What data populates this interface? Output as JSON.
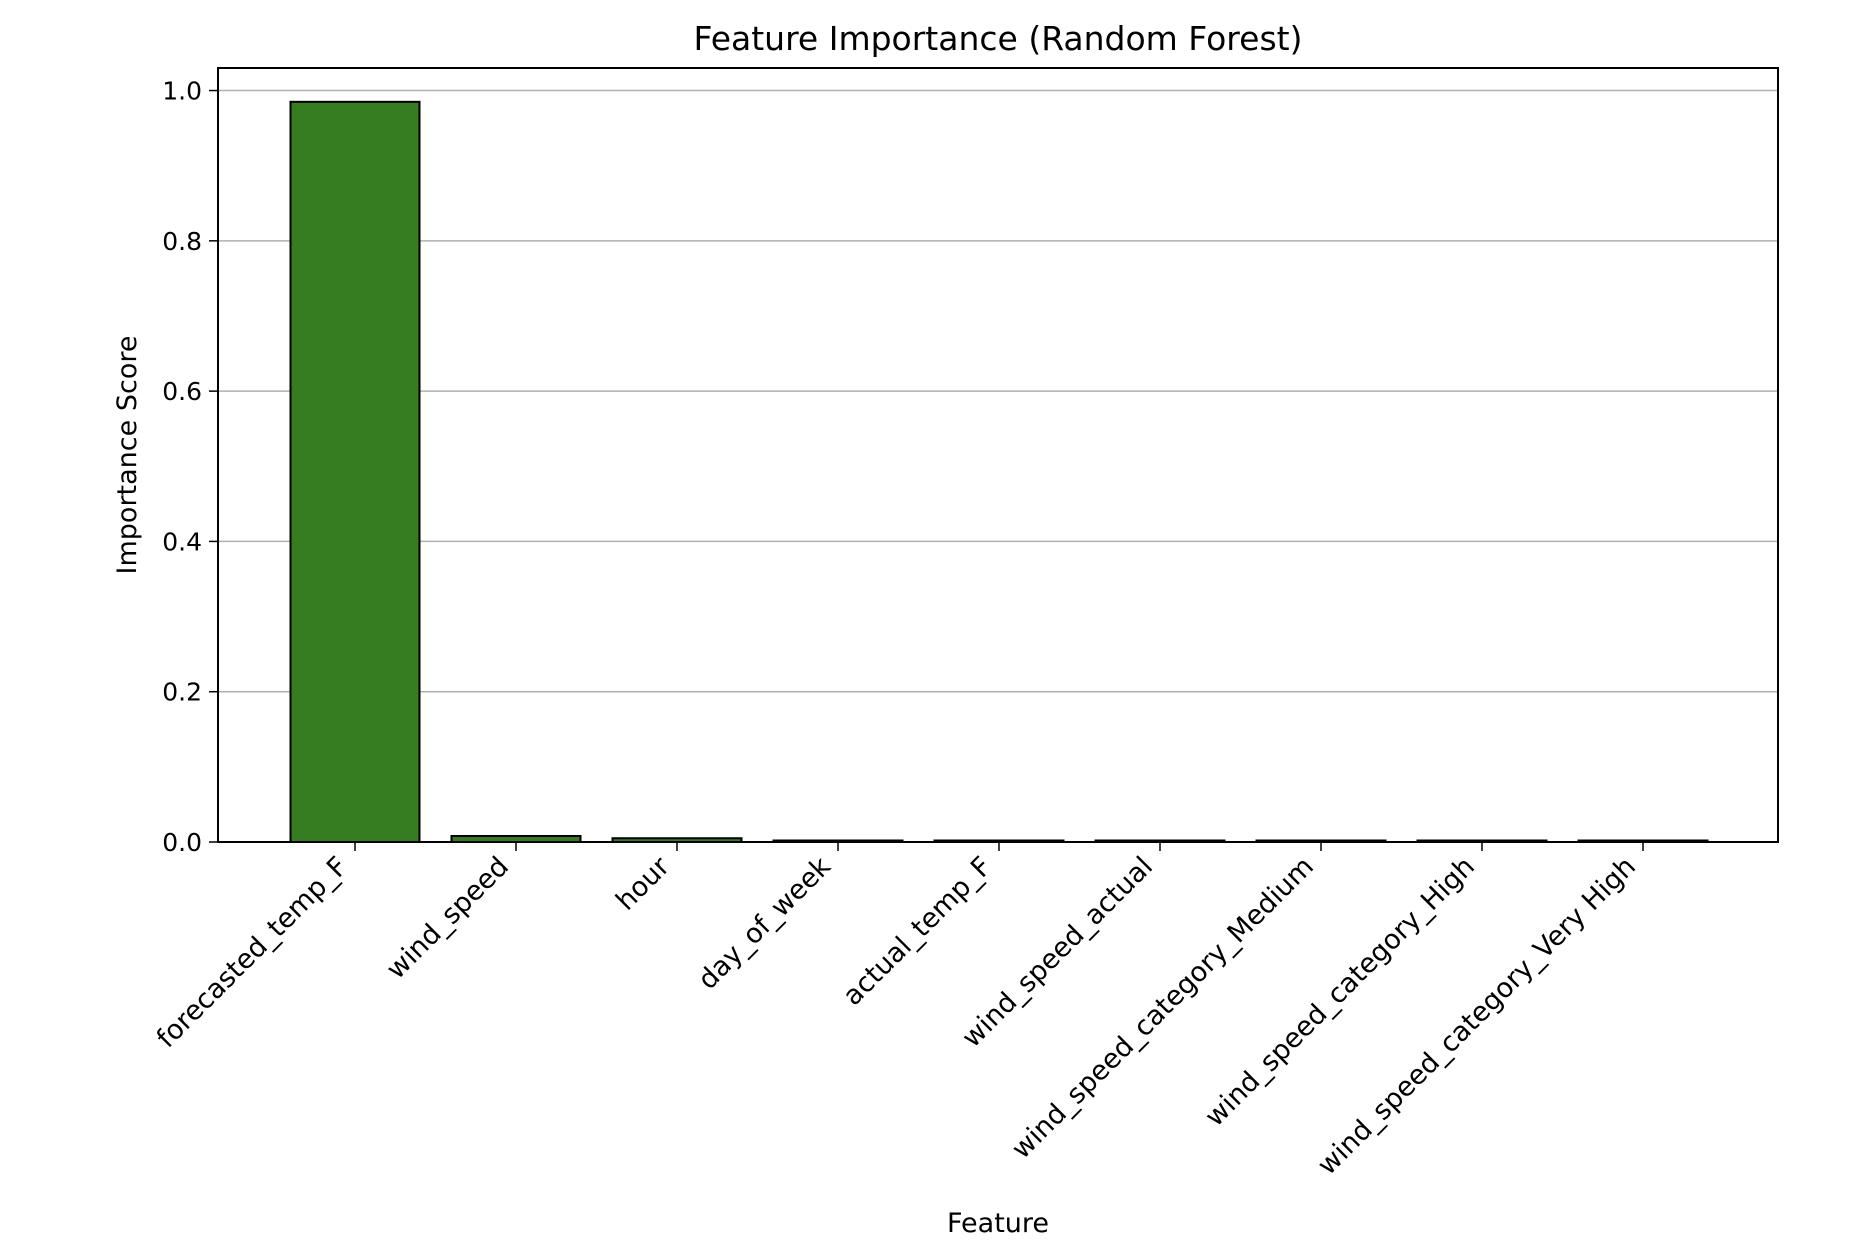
{
  "chart_data": {
    "type": "bar",
    "title": "Feature Importance (Random Forest)",
    "xlabel": "Feature",
    "ylabel": "Importance Score",
    "categories": [
      "forecasted_temp_F",
      "wind_speed",
      "hour",
      "day_of_week",
      "actual_temp_F",
      "wind_speed_actual",
      "wind_speed_category_Medium",
      "wind_speed_category_High",
      "wind_speed_category_Very High"
    ],
    "values": [
      0.985,
      0.008,
      0.005,
      0.002,
      0.0,
      0.0,
      0.0,
      0.0,
      0.0
    ],
    "ylim": [
      0,
      1.03
    ],
    "yticks": [
      "0.0",
      "0.2",
      "0.4",
      "0.6",
      "0.8",
      "1.0"
    ],
    "grid": "y-axis",
    "bar_color": "#367c21",
    "bar_edge_color": "#000000",
    "grid_color": "#b0b0b0",
    "legend": "none"
  }
}
